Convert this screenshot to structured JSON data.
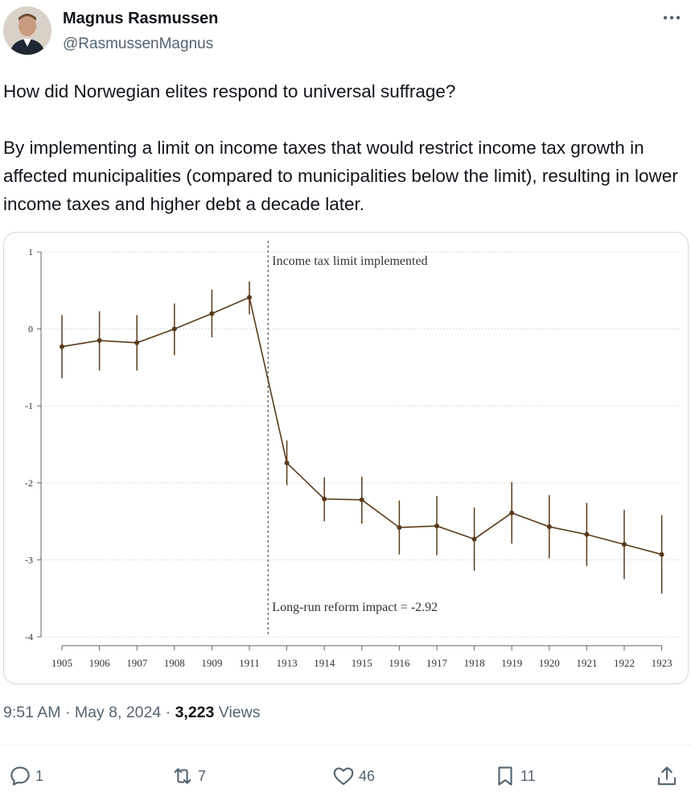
{
  "author": {
    "name": "Magnus Rasmussen",
    "handle": "@RasmussenMagnus",
    "avatar_icon": "avatar-photo"
  },
  "tweet": {
    "paragraphs": [
      "How did Norwegian elites respond to universal suffrage?",
      "By implementing a limit on income taxes that would restrict income tax growth in affected municipalities (compared to municipalities below the limit), resulting in lower income taxes and higher debt a decade later."
    ]
  },
  "chart_data": {
    "type": "line",
    "title": "",
    "xlabel": "",
    "ylabel": "",
    "x": [
      "1905",
      "1906",
      "1907",
      "1908",
      "1909",
      "1911",
      "1913",
      "1914",
      "1915",
      "1916",
      "1917",
      "1918",
      "1919",
      "1920",
      "1921",
      "1922",
      "1923"
    ],
    "series": [
      {
        "values": [
          -0.23,
          -0.15,
          -0.18,
          0.0,
          0.2,
          0.41,
          -1.74,
          -2.21,
          -2.22,
          -2.58,
          -2.56,
          -2.73,
          -2.39,
          -2.57,
          -2.67,
          -2.8,
          -2.93
        ],
        "ci_low": [
          -0.64,
          -0.54,
          -0.54,
          -0.34,
          -0.11,
          0.19,
          -2.03,
          -2.5,
          -2.53,
          -2.93,
          -2.94,
          -3.14,
          -2.79,
          -2.98,
          -3.08,
          -3.25,
          -3.44
        ],
        "ci_high": [
          0.18,
          0.23,
          0.18,
          0.33,
          0.51,
          0.62,
          -1.45,
          -1.93,
          -1.92,
          -2.23,
          -2.17,
          -2.32,
          -1.99,
          -2.16,
          -2.26,
          -2.35,
          -2.42
        ]
      }
    ],
    "yticks": [
      "1",
      "0",
      "-1",
      "-2",
      "-3",
      "-4"
    ],
    "ylim": [
      -4,
      1
    ],
    "grid": true,
    "annotations": {
      "vline_label": "Income tax limit implemented",
      "impact_label": "Long-run reform impact = -2.92"
    },
    "colors": {
      "line": "#5a3a1a",
      "vline": "#555555"
    }
  },
  "meta": {
    "time": "9:51 AM",
    "sep": "·",
    "date": "May 8, 2024",
    "views_count": "3,223",
    "views_label": "Views"
  },
  "actions": {
    "replies": "1",
    "reposts": "7",
    "likes": "46",
    "bookmarks": "11"
  }
}
